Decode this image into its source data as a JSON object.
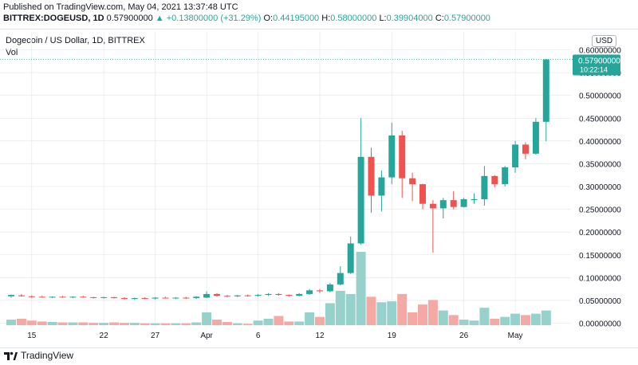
{
  "header": {
    "published": "Published on TradingView.com, May 04, 2021 13:37:48 UTC",
    "symbol": "BITTREX:DOGEUSD, 1D",
    "last": "0.57900000",
    "change_arrow": "▲",
    "change": "+0.13800000 (+31.29%)",
    "o_label": "O:",
    "o_value": "0.44195000",
    "h_label": "H:",
    "h_value": "0.58000000",
    "l_label": "L:",
    "l_value": "0.39904000",
    "c_label": "C:",
    "c_value": "0.57900000"
  },
  "chart_title": "Dogecoin / US Dollar, 1D, BITTREX",
  "volume_label": "Vol",
  "currency_button": "USD",
  "price_badge": {
    "price": "0.57900000",
    "countdown": "10:22:14"
  },
  "footer": {
    "brand": "TradingView"
  },
  "colors": {
    "up": "#26a69a",
    "down": "#ef5350",
    "vol_up": "#96d2cb",
    "vol_down": "#f5a9a5",
    "grid": "#e0e3eb"
  },
  "chart_data": {
    "type": "candlestick",
    "title": "Dogecoin / US Dollar, 1D, BITTREX",
    "ylim": [
      0,
      0.6
    ],
    "yticks": [
      "0.60000000",
      "0.55000000",
      "0.50000000",
      "0.45000000",
      "0.40000000",
      "0.35000000",
      "0.30000000",
      "0.25000000",
      "0.20000000",
      "0.15000000",
      "0.10000000",
      "0.05000000",
      "0.00000000"
    ],
    "xticks": [
      {
        "i": 2,
        "label": "15"
      },
      {
        "i": 9,
        "label": "22"
      },
      {
        "i": 14,
        "label": "27"
      },
      {
        "i": 19,
        "label": "Apr"
      },
      {
        "i": 24,
        "label": "6"
      },
      {
        "i": 30,
        "label": "12"
      },
      {
        "i": 37,
        "label": "19"
      },
      {
        "i": 44,
        "label": "26"
      },
      {
        "i": 49,
        "label": "May"
      }
    ],
    "volume_scale_max": 0.16,
    "candles": [
      {
        "o": 0.059,
        "h": 0.063,
        "l": 0.056,
        "c": 0.062,
        "v": 0.012
      },
      {
        "o": 0.061,
        "h": 0.064,
        "l": 0.058,
        "c": 0.059,
        "v": 0.014
      },
      {
        "o": 0.059,
        "h": 0.061,
        "l": 0.056,
        "c": 0.058,
        "v": 0.01
      },
      {
        "o": 0.058,
        "h": 0.06,
        "l": 0.056,
        "c": 0.057,
        "v": 0.008
      },
      {
        "o": 0.057,
        "h": 0.059,
        "l": 0.055,
        "c": 0.058,
        "v": 0.007
      },
      {
        "o": 0.058,
        "h": 0.06,
        "l": 0.056,
        "c": 0.057,
        "v": 0.006
      },
      {
        "o": 0.057,
        "h": 0.059,
        "l": 0.055,
        "c": 0.058,
        "v": 0.006
      },
      {
        "o": 0.058,
        "h": 0.06,
        "l": 0.056,
        "c": 0.057,
        "v": 0.006
      },
      {
        "o": 0.057,
        "h": 0.058,
        "l": 0.054,
        "c": 0.056,
        "v": 0.005
      },
      {
        "o": 0.056,
        "h": 0.058,
        "l": 0.054,
        "c": 0.057,
        "v": 0.005
      },
      {
        "o": 0.057,
        "h": 0.058,
        "l": 0.054,
        "c": 0.055,
        "v": 0.006
      },
      {
        "o": 0.055,
        "h": 0.057,
        "l": 0.052,
        "c": 0.053,
        "v": 0.005
      },
      {
        "o": 0.053,
        "h": 0.056,
        "l": 0.051,
        "c": 0.055,
        "v": 0.005
      },
      {
        "o": 0.055,
        "h": 0.057,
        "l": 0.053,
        "c": 0.054,
        "v": 0.004
      },
      {
        "o": 0.054,
        "h": 0.057,
        "l": 0.052,
        "c": 0.056,
        "v": 0.004
      },
      {
        "o": 0.056,
        "h": 0.058,
        "l": 0.054,
        "c": 0.055,
        "v": 0.004
      },
      {
        "o": 0.055,
        "h": 0.057,
        "l": 0.053,
        "c": 0.056,
        "v": 0.004
      },
      {
        "o": 0.056,
        "h": 0.058,
        "l": 0.053,
        "c": 0.055,
        "v": 0.004
      },
      {
        "o": 0.055,
        "h": 0.059,
        "l": 0.053,
        "c": 0.058,
        "v": 0.006
      },
      {
        "o": 0.056,
        "h": 0.07,
        "l": 0.055,
        "c": 0.064,
        "v": 0.028
      },
      {
        "o": 0.064,
        "h": 0.066,
        "l": 0.058,
        "c": 0.06,
        "v": 0.012
      },
      {
        "o": 0.06,
        "h": 0.062,
        "l": 0.057,
        "c": 0.059,
        "v": 0.007
      },
      {
        "o": 0.059,
        "h": 0.062,
        "l": 0.057,
        "c": 0.061,
        "v": 0.004
      },
      {
        "o": 0.061,
        "h": 0.063,
        "l": 0.058,
        "c": 0.06,
        "v": 0.003
      },
      {
        "o": 0.06,
        "h": 0.064,
        "l": 0.058,
        "c": 0.062,
        "v": 0.01
      },
      {
        "o": 0.062,
        "h": 0.066,
        "l": 0.06,
        "c": 0.064,
        "v": 0.014
      },
      {
        "o": 0.064,
        "h": 0.066,
        "l": 0.06,
        "c": 0.062,
        "v": 0.02
      },
      {
        "o": 0.062,
        "h": 0.063,
        "l": 0.058,
        "c": 0.06,
        "v": 0.008
      },
      {
        "o": 0.06,
        "h": 0.066,
        "l": 0.059,
        "c": 0.064,
        "v": 0.008
      },
      {
        "o": 0.064,
        "h": 0.075,
        "l": 0.062,
        "c": 0.072,
        "v": 0.028
      },
      {
        "o": 0.072,
        "h": 0.075,
        "l": 0.066,
        "c": 0.07,
        "v": 0.018
      },
      {
        "o": 0.07,
        "h": 0.088,
        "l": 0.068,
        "c": 0.085,
        "v": 0.048
      },
      {
        "o": 0.085,
        "h": 0.125,
        "l": 0.083,
        "c": 0.11,
        "v": 0.075
      },
      {
        "o": 0.11,
        "h": 0.19,
        "l": 0.108,
        "c": 0.175,
        "v": 0.068
      },
      {
        "o": 0.175,
        "h": 0.45,
        "l": 0.172,
        "c": 0.365,
        "v": 0.16
      },
      {
        "o": 0.365,
        "h": 0.385,
        "l": 0.242,
        "c": 0.28,
        "v": 0.062
      },
      {
        "o": 0.28,
        "h": 0.335,
        "l": 0.245,
        "c": 0.32,
        "v": 0.05
      },
      {
        "o": 0.32,
        "h": 0.44,
        "l": 0.305,
        "c": 0.412,
        "v": 0.052
      },
      {
        "o": 0.412,
        "h": 0.422,
        "l": 0.275,
        "c": 0.318,
        "v": 0.068
      },
      {
        "o": 0.318,
        "h": 0.33,
        "l": 0.268,
        "c": 0.305,
        "v": 0.028
      },
      {
        "o": 0.305,
        "h": 0.306,
        "l": 0.25,
        "c": 0.262,
        "v": 0.045
      },
      {
        "o": 0.262,
        "h": 0.27,
        "l": 0.155,
        "c": 0.252,
        "v": 0.055
      },
      {
        "o": 0.252,
        "h": 0.275,
        "l": 0.23,
        "c": 0.27,
        "v": 0.032
      },
      {
        "o": 0.27,
        "h": 0.29,
        "l": 0.25,
        "c": 0.255,
        "v": 0.022
      },
      {
        "o": 0.255,
        "h": 0.275,
        "l": 0.254,
        "c": 0.272,
        "v": 0.012
      },
      {
        "o": 0.272,
        "h": 0.285,
        "l": 0.262,
        "c": 0.272,
        "v": 0.01
      },
      {
        "o": 0.272,
        "h": 0.345,
        "l": 0.258,
        "c": 0.323,
        "v": 0.038
      },
      {
        "o": 0.323,
        "h": 0.325,
        "l": 0.298,
        "c": 0.305,
        "v": 0.014
      },
      {
        "o": 0.305,
        "h": 0.345,
        "l": 0.3,
        "c": 0.342,
        "v": 0.018
      },
      {
        "o": 0.342,
        "h": 0.4,
        "l": 0.33,
        "c": 0.392,
        "v": 0.025
      },
      {
        "o": 0.392,
        "h": 0.397,
        "l": 0.36,
        "c": 0.372,
        "v": 0.022
      },
      {
        "o": 0.372,
        "h": 0.45,
        "l": 0.37,
        "c": 0.442,
        "v": 0.025
      },
      {
        "o": 0.442,
        "h": 0.58,
        "l": 0.399,
        "c": 0.579,
        "v": 0.032
      }
    ]
  }
}
